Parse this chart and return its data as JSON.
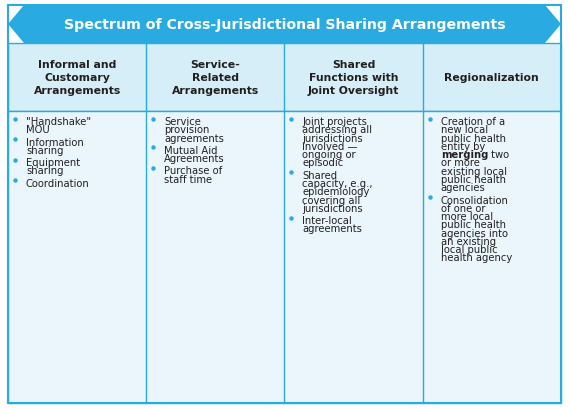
{
  "title": "Spectrum of Cross-Jurisdictional Sharing Arrangements",
  "title_color": "#FFFFFF",
  "title_bg_color": "#29ABE2",
  "header_bg_color": "#D6EEF8",
  "body_bg_color": "#EAF6FC",
  "border_color": "#29ABE2",
  "bullet_color": "#29ABE2",
  "text_color": "#231F20",
  "figw": 5.69,
  "figh": 4.1,
  "dpi": 100,
  "headers": [
    "Informal and\nCustomary\nArrangements",
    "Service-\nRelated\nArrangements",
    "Shared\nFunctions with\nJoint Oversight",
    "Regionalization"
  ],
  "columns": [
    [
      [
        [
          "\"Handshake\"",
          false
        ],
        [
          "\nMOU",
          false
        ]
      ],
      [
        [
          "Information\nsharing",
          false
        ]
      ],
      [
        [
          "Equipment\nsharing",
          false
        ]
      ],
      [
        [
          "Coordination",
          false
        ]
      ]
    ],
    [
      [
        [
          "Service\nprovision\nagreements",
          false
        ]
      ],
      [
        [
          "Mutual Aid\nAgreements",
          false
        ]
      ],
      [
        [
          "Purchase of\nstaff time",
          false
        ]
      ]
    ],
    [
      [
        [
          "Joint projects\naddressing all\njurisdictions\ninvolved —\nongoing or\nepisodic",
          false
        ]
      ],
      [
        [
          "Shared\ncapacity, e.g.,\nepidemiology\ncovering all\njurisdictions",
          false
        ]
      ],
      [
        [
          "Inter-local\nagreements",
          false
        ]
      ]
    ],
    [
      [
        [
          "Creation of a\nnew local\npublic health\nentity by\n",
          false
        ],
        [
          "merging",
          true
        ],
        [
          " two\nor more\nexisting local\npublic health\nagencies",
          false
        ]
      ],
      [
        [
          "Consolidation\nof one or\nmore local\npublic health\nagencies into\nan existing\nlocal public\nhealth agency",
          false
        ]
      ]
    ]
  ]
}
